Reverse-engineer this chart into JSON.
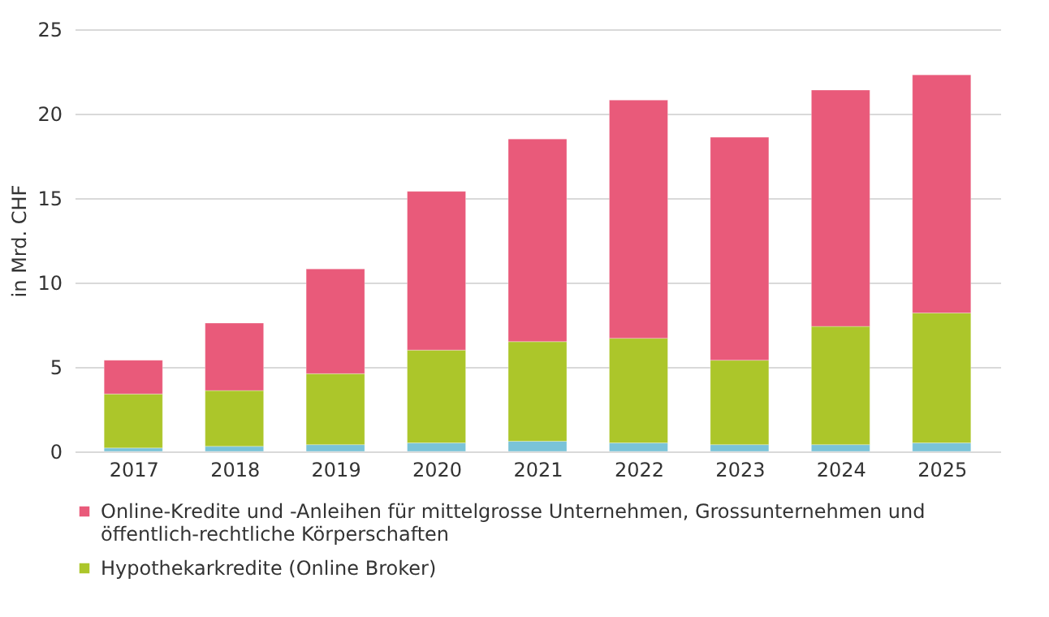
{
  "chart_data": {
    "type": "bar",
    "stacked": true,
    "ylabel": "in Mrd. CHF",
    "categories": [
      "2017",
      "2018",
      "2019",
      "2020",
      "2021",
      "2022",
      "2023",
      "2024",
      "2025"
    ],
    "series": [
      {
        "color": "#7ac3d8",
        "values": [
          0.2,
          0.3,
          0.4,
          0.5,
          0.6,
          0.5,
          0.4,
          0.4,
          0.5
        ]
      },
      {
        "name": "Hypothekarkredite (Online Broker)",
        "color": "#acc62a",
        "values": [
          3.2,
          3.3,
          4.2,
          5.5,
          5.9,
          6.2,
          5.0,
          7.0,
          7.7
        ]
      },
      {
        "name": "Online-Kredite und -Anleihen für mittelgrosse Unternehmen, Grossunternehmen und öffentlich-rechtliche Körperschaften",
        "color": "#e95a7a",
        "values": [
          2.0,
          4.0,
          6.2,
          9.4,
          12.0,
          14.1,
          13.2,
          14.0,
          14.1
        ]
      }
    ],
    "ylim": [
      0,
      25
    ],
    "yticks": [
      0,
      5,
      10,
      15,
      20,
      25
    ],
    "grid": "y",
    "legend": "bottom"
  }
}
